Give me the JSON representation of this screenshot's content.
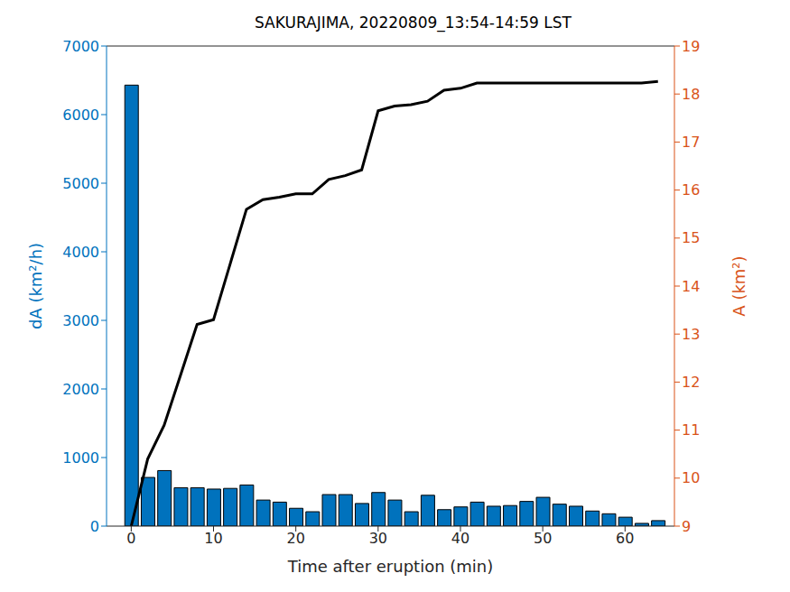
{
  "chart_data": {
    "type": "bar",
    "title": "SAKURAJIMA, 20220809_13:54-14:59 LST",
    "x_label": "Time after eruption (min)",
    "y_label": "dA (km²/h)",
    "y2_label": "A (km²)",
    "x": [
      0,
      2,
      4,
      6,
      8,
      10,
      12,
      14,
      16,
      18,
      20,
      22,
      24,
      26,
      28,
      30,
      32,
      34,
      36,
      38,
      40,
      42,
      44,
      46,
      48,
      50,
      52,
      54,
      56,
      58,
      60,
      62,
      64
    ],
    "series": [
      {
        "type": "bar",
        "color": "#0072BD",
        "values": [
          6430,
          710,
          810,
          560,
          560,
          540,
          550,
          600,
          380,
          350,
          260,
          210,
          460,
          460,
          330,
          490,
          380,
          210,
          450,
          240,
          280,
          350,
          290,
          300,
          360,
          420,
          320,
          290,
          220,
          180,
          130,
          40,
          80
        ]
      },
      {
        "type": "line",
        "color": "#000000",
        "axis": "y2",
        "values": [
          9.0,
          10.4,
          11.1,
          12.15,
          13.2,
          13.3,
          14.45,
          15.6,
          15.8,
          15.85,
          15.92,
          15.92,
          16.22,
          16.3,
          16.42,
          17.65,
          17.75,
          17.78,
          17.85,
          18.08,
          18.12,
          18.23,
          18.23,
          18.23,
          18.23,
          18.23,
          18.23,
          18.23,
          18.23,
          18.23,
          18.23,
          18.23,
          18.26
        ]
      }
    ],
    "xlim": [
      -3,
      66
    ],
    "xticks": [
      0,
      10,
      20,
      30,
      40,
      50,
      60
    ],
    "ylim": [
      0,
      7000
    ],
    "yticks": [
      0,
      1000,
      2000,
      3000,
      4000,
      5000,
      6000,
      7000
    ],
    "y2lim": [
      9,
      19
    ],
    "y2ticks": [
      9,
      10,
      11,
      12,
      13,
      14,
      15,
      16,
      17,
      18,
      19
    ]
  }
}
